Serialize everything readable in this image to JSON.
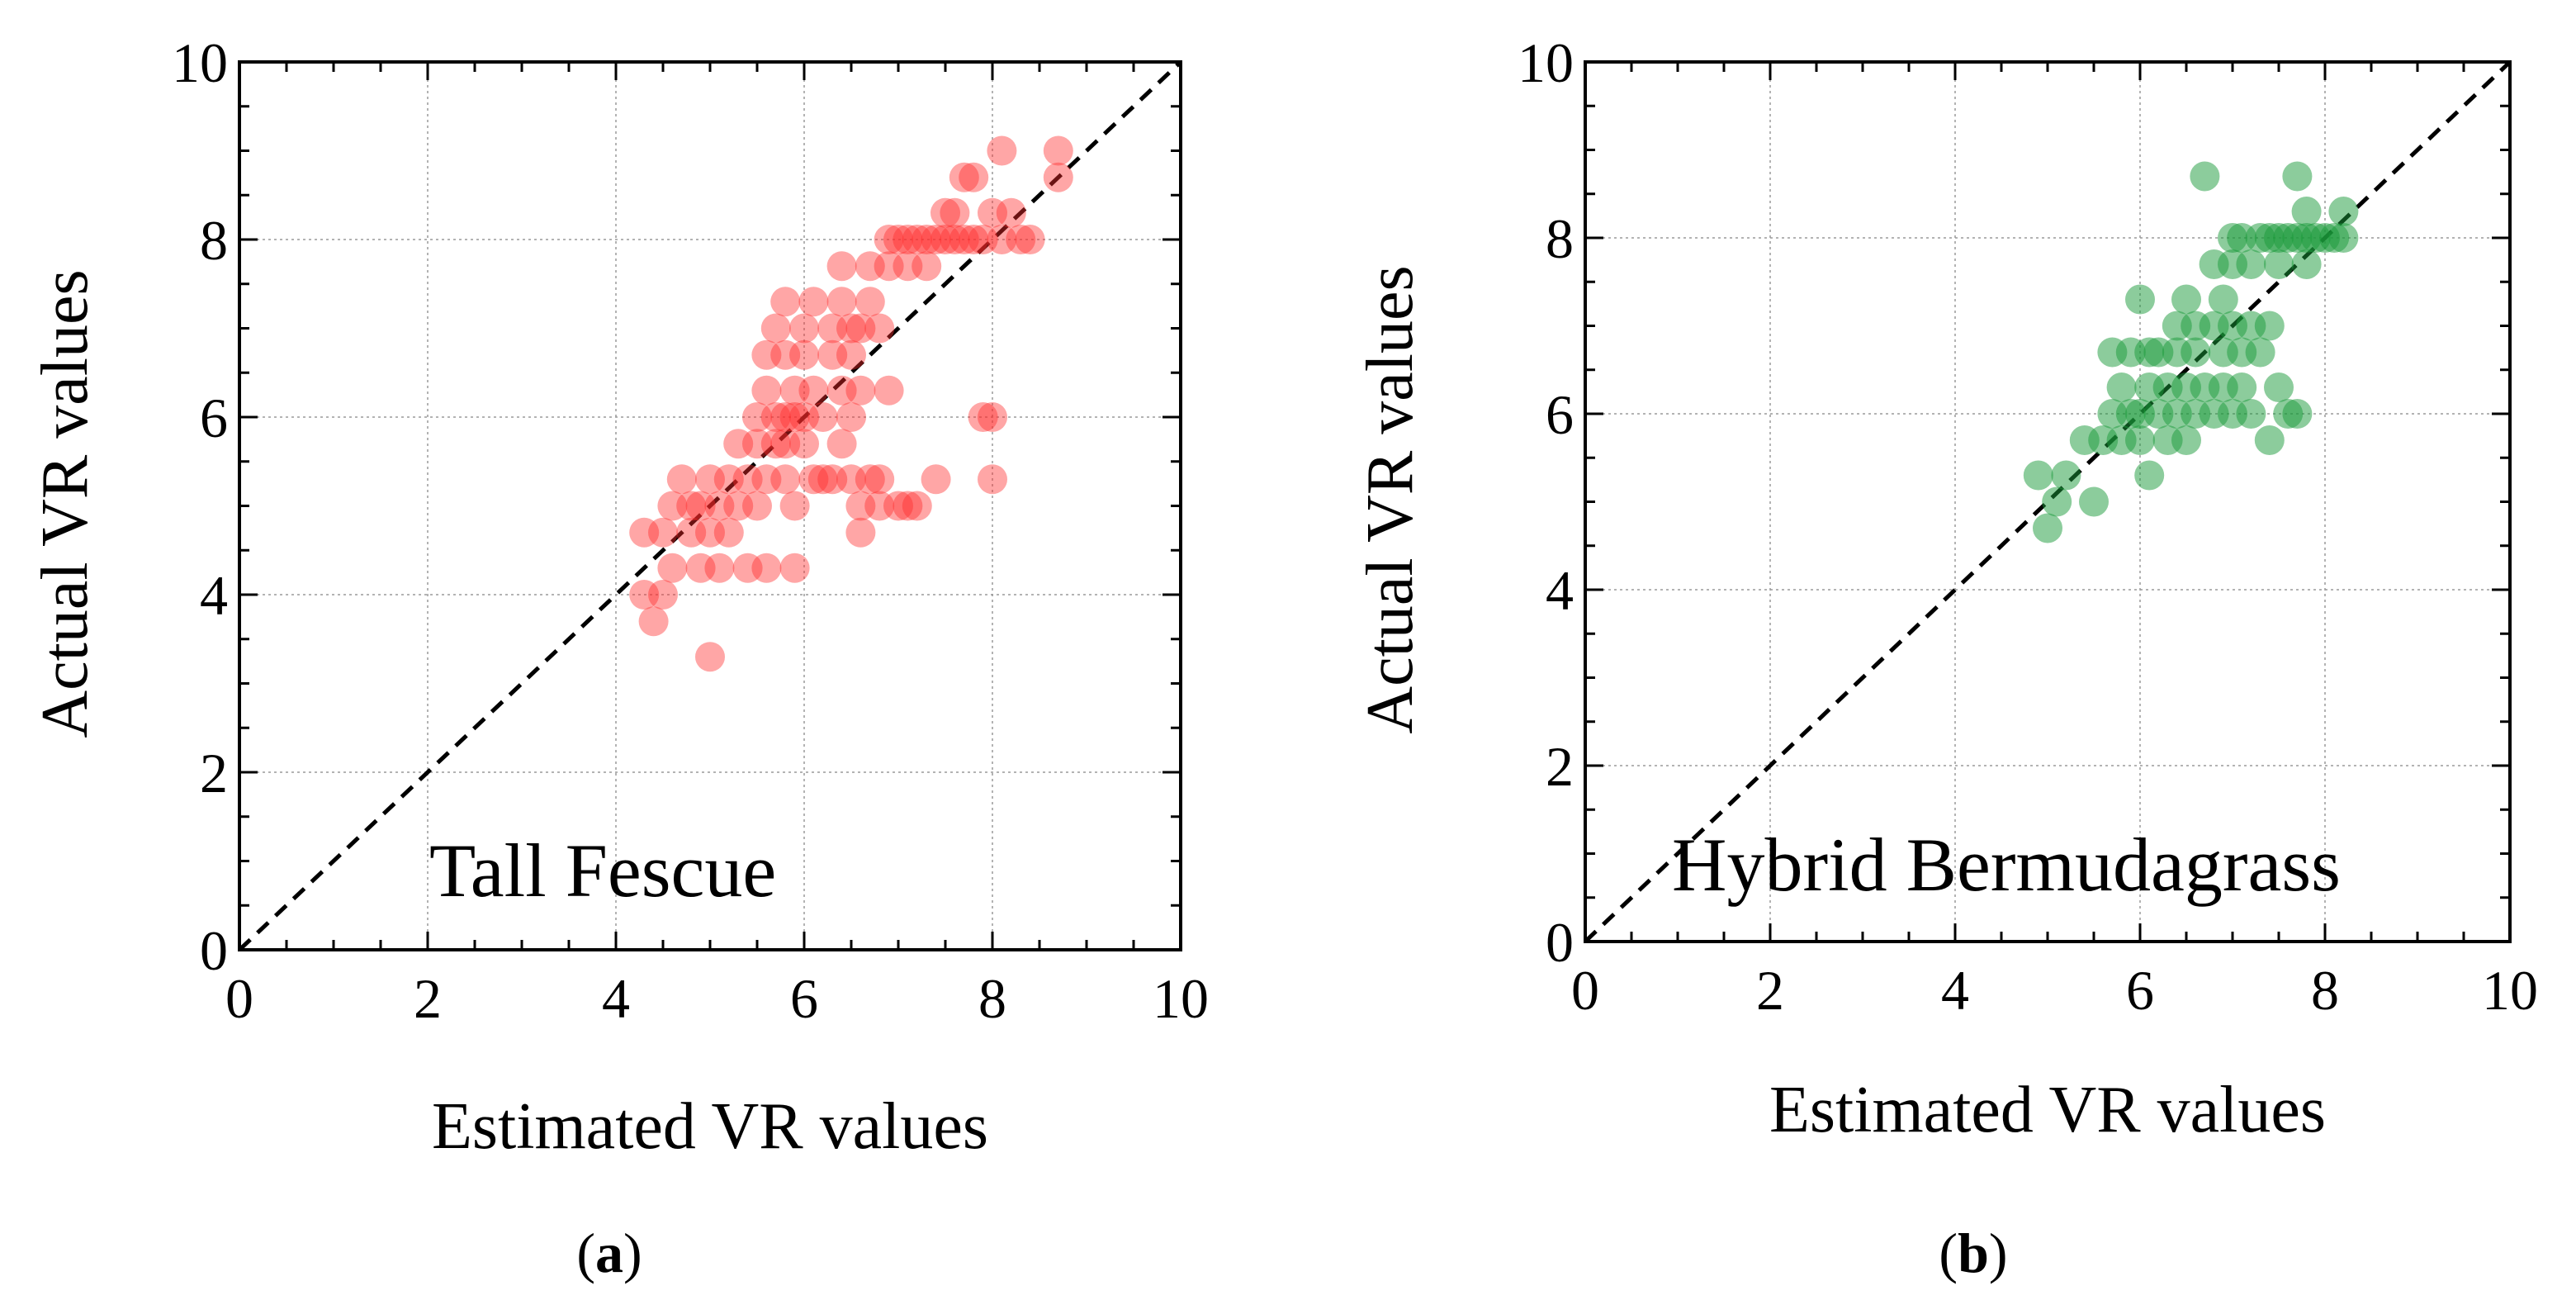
{
  "chart_data": [
    {
      "type": "scatter",
      "panel_label": "a",
      "inset_label": "Tall Fescue",
      "xlabel": "Estimated VR values",
      "ylabel": "Actual VR values",
      "xlim": [
        0,
        10
      ],
      "ylim": [
        0,
        10
      ],
      "xticks": [
        "0",
        "2",
        "4",
        "6",
        "8",
        "10"
      ],
      "yticks": [
        "0",
        "2",
        "4",
        "6",
        "8",
        "10"
      ],
      "grid": true,
      "reference_line": "y = x (dashed)",
      "color": "#ff2a2a",
      "points": [
        [
          4.3,
          4.0
        ],
        [
          4.4,
          3.7
        ],
        [
          4.5,
          4.0
        ],
        [
          4.3,
          4.7
        ],
        [
          4.5,
          4.7
        ],
        [
          4.6,
          4.3
        ],
        [
          4.6,
          5.0
        ],
        [
          4.7,
          5.3
        ],
        [
          4.8,
          4.7
        ],
        [
          4.8,
          5.0
        ],
        [
          4.9,
          4.3
        ],
        [
          4.9,
          5.0
        ],
        [
          5.0,
          3.3
        ],
        [
          5.0,
          4.7
        ],
        [
          5.0,
          5.3
        ],
        [
          5.1,
          4.3
        ],
        [
          5.1,
          5.0
        ],
        [
          5.2,
          4.7
        ],
        [
          5.2,
          5.3
        ],
        [
          5.3,
          5.0
        ],
        [
          5.3,
          5.7
        ],
        [
          5.4,
          4.3
        ],
        [
          5.4,
          5.3
        ],
        [
          5.5,
          5.0
        ],
        [
          5.5,
          5.7
        ],
        [
          5.5,
          6.0
        ],
        [
          5.6,
          4.3
        ],
        [
          5.6,
          5.3
        ],
        [
          5.6,
          6.3
        ],
        [
          5.6,
          6.7
        ],
        [
          5.7,
          5.7
        ],
        [
          5.7,
          6.0
        ],
        [
          5.7,
          7.0
        ],
        [
          5.8,
          5.3
        ],
        [
          5.8,
          5.7
        ],
        [
          5.8,
          6.0
        ],
        [
          5.8,
          6.7
        ],
        [
          5.8,
          7.3
        ],
        [
          5.9,
          4.3
        ],
        [
          5.9,
          5.0
        ],
        [
          5.9,
          6.0
        ],
        [
          5.9,
          6.3
        ],
        [
          6.0,
          5.7
        ],
        [
          6.0,
          6.0
        ],
        [
          6.0,
          6.7
        ],
        [
          6.0,
          7.0
        ],
        [
          6.1,
          5.3
        ],
        [
          6.1,
          6.3
        ],
        [
          6.1,
          7.3
        ],
        [
          6.2,
          5.3
        ],
        [
          6.2,
          6.0
        ],
        [
          6.3,
          5.3
        ],
        [
          6.3,
          6.7
        ],
        [
          6.3,
          7.0
        ],
        [
          6.4,
          5.7
        ],
        [
          6.4,
          6.3
        ],
        [
          6.4,
          7.3
        ],
        [
          6.4,
          7.7
        ],
        [
          6.5,
          5.3
        ],
        [
          6.5,
          6.0
        ],
        [
          6.5,
          6.7
        ],
        [
          6.5,
          7.0
        ],
        [
          6.6,
          4.7
        ],
        [
          6.6,
          5.0
        ],
        [
          6.6,
          6.3
        ],
        [
          6.6,
          7.0
        ],
        [
          6.7,
          5.3
        ],
        [
          6.7,
          7.3
        ],
        [
          6.7,
          7.7
        ],
        [
          6.8,
          5.0
        ],
        [
          6.8,
          5.3
        ],
        [
          6.8,
          7.0
        ],
        [
          6.9,
          6.3
        ],
        [
          6.9,
          7.7
        ],
        [
          6.9,
          8.0
        ],
        [
          7.0,
          5.0
        ],
        [
          7.0,
          8.0
        ],
        [
          7.1,
          5.0
        ],
        [
          7.1,
          7.7
        ],
        [
          7.1,
          8.0
        ],
        [
          7.2,
          5.0
        ],
        [
          7.2,
          8.0
        ],
        [
          7.3,
          7.7
        ],
        [
          7.3,
          8.0
        ],
        [
          7.4,
          5.3
        ],
        [
          7.4,
          8.0
        ],
        [
          7.5,
          8.0
        ],
        [
          7.5,
          8.3
        ],
        [
          7.6,
          8.0
        ],
        [
          7.6,
          8.3
        ],
        [
          7.7,
          8.7
        ],
        [
          7.7,
          8.0
        ],
        [
          7.8,
          8.0
        ],
        [
          7.8,
          8.7
        ],
        [
          7.9,
          6.0
        ],
        [
          7.9,
          8.0
        ],
        [
          8.0,
          5.3
        ],
        [
          8.0,
          6.0
        ],
        [
          8.0,
          8.3
        ],
        [
          8.1,
          8.0
        ],
        [
          8.1,
          9.0
        ],
        [
          8.2,
          8.3
        ],
        [
          8.3,
          8.0
        ],
        [
          8.4,
          8.0
        ],
        [
          8.7,
          8.7
        ],
        [
          8.7,
          9.0
        ]
      ]
    },
    {
      "type": "scatter",
      "panel_label": "b",
      "inset_label": "Hybrid Bermudagrass",
      "xlabel": "Estimated VR values",
      "ylabel": "Actual VR values",
      "xlim": [
        0,
        10
      ],
      "ylim": [
        0,
        10
      ],
      "xticks": [
        "0",
        "2",
        "4",
        "6",
        "8",
        "10"
      ],
      "yticks": [
        "0",
        "2",
        "4",
        "6",
        "8",
        "10"
      ],
      "grid": true,
      "reference_line": "y = x (dashed)",
      "color": "#1a9a3a",
      "points": [
        [
          4.9,
          5.3
        ],
        [
          5.0,
          4.7
        ],
        [
          5.1,
          5.0
        ],
        [
          5.2,
          5.3
        ],
        [
          5.4,
          5.7
        ],
        [
          5.5,
          5.0
        ],
        [
          5.6,
          5.7
        ],
        [
          5.7,
          6.0
        ],
        [
          5.7,
          6.7
        ],
        [
          5.8,
          5.7
        ],
        [
          5.8,
          6.3
        ],
        [
          5.9,
          6.0
        ],
        [
          5.9,
          6.7
        ],
        [
          6.0,
          5.7
        ],
        [
          6.0,
          6.0
        ],
        [
          6.0,
          7.3
        ],
        [
          6.1,
          5.3
        ],
        [
          6.1,
          6.3
        ],
        [
          6.1,
          6.7
        ],
        [
          6.2,
          6.0
        ],
        [
          6.2,
          6.7
        ],
        [
          6.3,
          6.3
        ],
        [
          6.3,
          5.7
        ],
        [
          6.4,
          6.0
        ],
        [
          6.4,
          6.7
        ],
        [
          6.4,
          7.0
        ],
        [
          6.5,
          5.7
        ],
        [
          6.5,
          6.3
        ],
        [
          6.5,
          7.3
        ],
        [
          6.6,
          6.0
        ],
        [
          6.6,
          6.7
        ],
        [
          6.6,
          7.0
        ],
        [
          6.7,
          6.3
        ],
        [
          6.7,
          8.7
        ],
        [
          6.8,
          6.0
        ],
        [
          6.8,
          7.0
        ],
        [
          6.8,
          7.7
        ],
        [
          6.9,
          6.3
        ],
        [
          6.9,
          6.7
        ],
        [
          6.9,
          7.3
        ],
        [
          7.0,
          6.0
        ],
        [
          7.0,
          7.0
        ],
        [
          7.0,
          7.7
        ],
        [
          7.0,
          8.0
        ],
        [
          7.1,
          6.3
        ],
        [
          7.1,
          6.7
        ],
        [
          7.1,
          8.0
        ],
        [
          7.2,
          6.0
        ],
        [
          7.2,
          7.0
        ],
        [
          7.2,
          7.7
        ],
        [
          7.3,
          6.7
        ],
        [
          7.3,
          8.0
        ],
        [
          7.4,
          5.7
        ],
        [
          7.4,
          7.0
        ],
        [
          7.4,
          8.0
        ],
        [
          7.5,
          6.3
        ],
        [
          7.5,
          7.7
        ],
        [
          7.5,
          8.0
        ],
        [
          7.6,
          6.0
        ],
        [
          7.6,
          8.0
        ],
        [
          7.7,
          6.0
        ],
        [
          7.7,
          8.0
        ],
        [
          7.7,
          8.7
        ],
        [
          7.8,
          7.7
        ],
        [
          7.8,
          8.0
        ],
        [
          7.8,
          8.3
        ],
        [
          7.9,
          8.0
        ],
        [
          8.0,
          8.0
        ],
        [
          8.1,
          8.0
        ],
        [
          8.2,
          8.3
        ],
        [
          8.2,
          8.0
        ]
      ]
    }
  ]
}
